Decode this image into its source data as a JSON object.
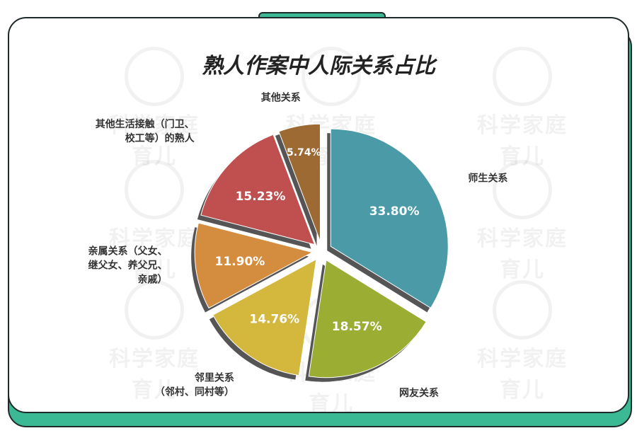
{
  "chart_data": {
    "type": "pie",
    "title": "熟人作案中人际关系占比",
    "slices": [
      {
        "name": "师生关系",
        "value": 33.8,
        "label": "33.80%",
        "color": "#4a9aa8",
        "legend": [
          "师生关系"
        ]
      },
      {
        "name": "网友关系",
        "value": 18.57,
        "label": "18.57%",
        "color": "#9cad33",
        "legend": [
          "网友关系"
        ]
      },
      {
        "name": "邻里关系（邻村、同村等）",
        "value": 14.76,
        "label": "14.76%",
        "color": "#d3b83d",
        "legend": [
          "邻里关系",
          "（邻村、同村等）"
        ]
      },
      {
        "name": "亲属关系（父女、继父女、养父兄、亲戚）",
        "value": 11.9,
        "label": "11.90%",
        "color": "#d48c3f",
        "legend": [
          "亲属关系（父女、",
          "继父女、养父兄、",
          "亲戚）"
        ]
      },
      {
        "name": "其他生活接触（门卫、校工等）的熟人",
        "value": 15.23,
        "label": "15.23%",
        "color": "#c04f50",
        "legend": [
          "其他生活接触（门卫、",
          "校工等）的熟人"
        ]
      },
      {
        "name": "其他关系",
        "value": 5.74,
        "label": "5.74%",
        "color": "#9e6a34",
        "legend": [
          "其他关系"
        ]
      }
    ],
    "start": "12 o'clock",
    "direction": "clockwise",
    "exploded": true
  },
  "watermark": {
    "text": "科学家庭育儿"
  },
  "colors": {
    "accent": "#3bb894",
    "border": "#1f2a2a"
  }
}
